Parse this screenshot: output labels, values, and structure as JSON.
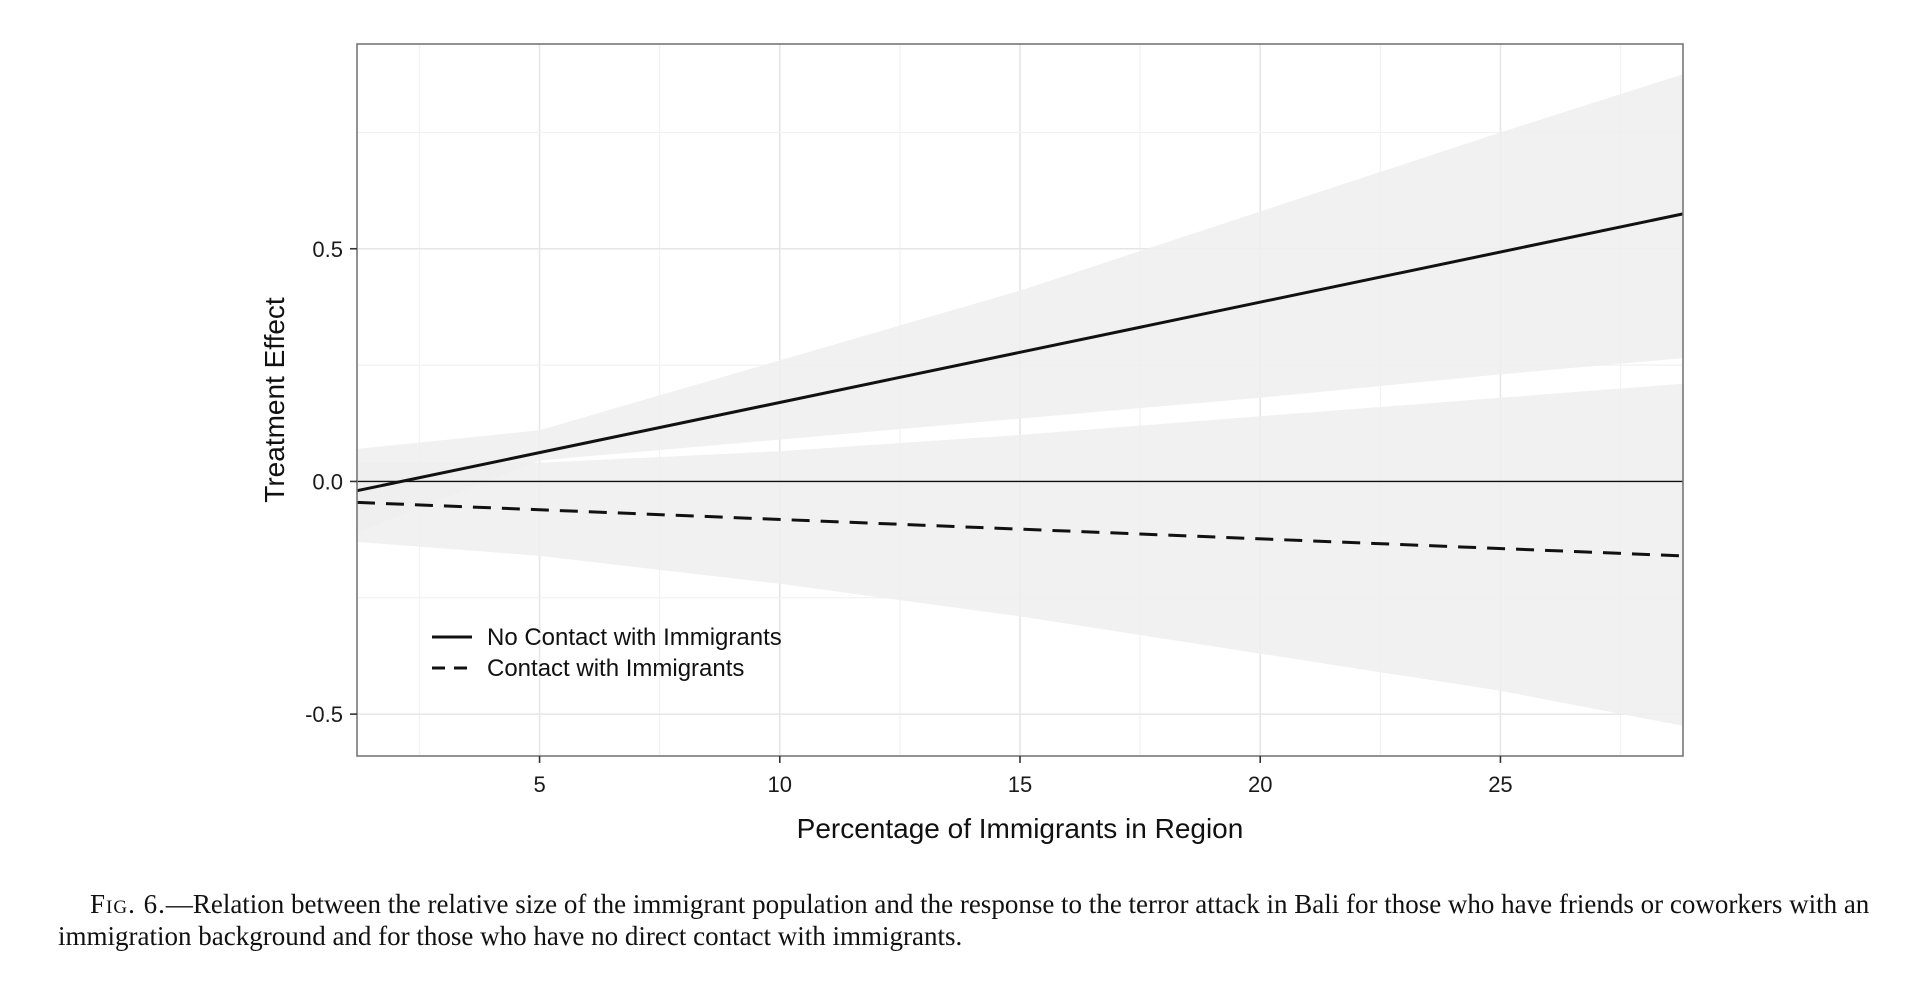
{
  "chart_data": {
    "type": "line",
    "title": "",
    "xlabel": "Percentage of Immigrants in Region",
    "ylabel": "Treatment Effect",
    "xlim": [
      1.2,
      28.8
    ],
    "ylim": [
      -0.59,
      0.94
    ],
    "x_ticks": [
      5,
      10,
      15,
      20,
      25
    ],
    "y_ticks": [
      -0.5,
      0.0,
      0.5
    ],
    "x_tick_labels": [
      "5",
      "10",
      "15",
      "20",
      "25"
    ],
    "y_tick_labels": [
      "-0.5",
      "0.0",
      "0.5"
    ],
    "grid": true,
    "reference_line_y": 0,
    "legend_position": "bottom-left",
    "series": [
      {
        "name": "No Contact with Immigrants",
        "style": "solid",
        "x": [
          1.2,
          28.8
        ],
        "y": [
          -0.02,
          0.575
        ],
        "band": {
          "x": [
            1.2,
            5,
            10,
            15,
            20,
            25,
            28.8
          ],
          "lower": [
            -0.11,
            0.045,
            0.09,
            0.135,
            0.18,
            0.23,
            0.265
          ],
          "upper": [
            0.07,
            0.11,
            0.26,
            0.41,
            0.58,
            0.75,
            0.875
          ]
        }
      },
      {
        "name": "Contact with Immigrants",
        "style": "dashed",
        "x": [
          1.2,
          28.8
        ],
        "y": [
          -0.045,
          -0.16
        ],
        "band": {
          "x": [
            1.2,
            5,
            10,
            15,
            20,
            25,
            28.8
          ],
          "lower": [
            -0.13,
            -0.16,
            -0.22,
            -0.29,
            -0.37,
            -0.45,
            -0.525
          ],
          "upper": [
            0.04,
            0.04,
            0.065,
            0.1,
            0.14,
            0.18,
            0.21
          ]
        }
      }
    ],
    "colors": {
      "band": "#eeeeee",
      "line": "#111111",
      "grid_major": "#e6e6e6",
      "grid_minor": "#f2f2f2",
      "frame": "#777777"
    }
  },
  "caption": {
    "fig_label": "Fig. 6.",
    "text": "—Relation between the relative size of the immigrant population and the response to the terror attack in Bali for those who have friends or coworkers with an immigration background and for those who have no direct contact with immigrants."
  }
}
